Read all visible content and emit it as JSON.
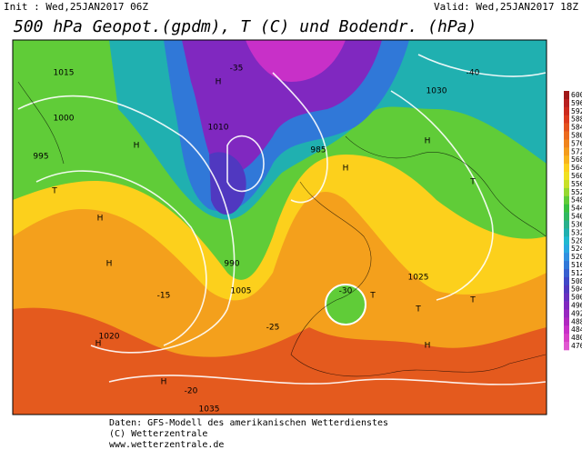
{
  "header": {
    "init": "Init : Wed,25JAN2017 06Z",
    "valid": "Valid: Wed,25JAN2017 18Z",
    "title": "500 hPa Geopot.(gpdm), T (C) und Bodendr. (hPa)"
  },
  "colorbar": {
    "ticks": [
      600,
      596,
      592,
      588,
      584,
      580,
      576,
      572,
      568,
      564,
      560,
      556,
      552,
      548,
      544,
      540,
      536,
      532,
      528,
      524,
      520,
      516,
      512,
      508,
      504,
      500,
      496,
      492,
      488,
      484,
      480,
      476
    ],
    "colors": [
      "#a01818",
      "#b82020",
      "#cc2a1e",
      "#dc3a1e",
      "#e4521e",
      "#ec6a1e",
      "#f0841c",
      "#f49c1c",
      "#f8b41c",
      "#fcd01c",
      "#f0e020",
      "#c8e028",
      "#96d830",
      "#60cc38",
      "#38c040",
      "#30b860",
      "#28b08c",
      "#20b0b0",
      "#20b8d0",
      "#28a8e0",
      "#3090e0",
      "#3078d8",
      "#3860d0",
      "#4048c8",
      "#5038c0",
      "#6830c0",
      "#8028c0",
      "#9828c0",
      "#b028c0",
      "#c830c8",
      "#d840c8",
      "#e058d0"
    ]
  },
  "map_labels": [
    "H",
    "H",
    "H",
    "H",
    "H",
    "H",
    "H",
    "H",
    "H",
    "T",
    "T",
    "T",
    "T",
    "T",
    "1015",
    "1000",
    "995",
    "990",
    "985",
    "1030",
    "1020",
    "1025",
    "1010",
    "1005",
    "1035",
    "-25",
    "-30",
    "-35",
    "-20",
    "-15",
    "-40"
  ],
  "footer": [
    "Daten: GFS-Modell des amerikanischen Wetterdienstes",
    "(C) Wetterzentrale",
    "www.wetterzentrale.de"
  ]
}
